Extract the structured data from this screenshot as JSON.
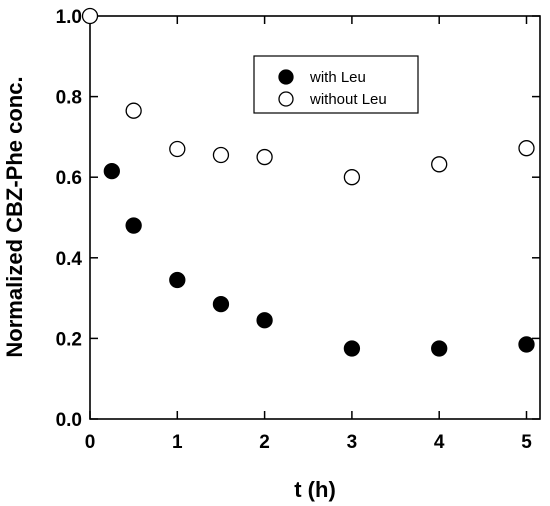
{
  "chart_data": {
    "type": "scatter",
    "xlabel": "t (h)",
    "ylabel": "Normalized CBZ-Phe conc.",
    "xlim": [
      0,
      5.15
    ],
    "ylim": [
      0,
      1.0
    ],
    "x_ticks": [
      "0",
      "1",
      "2",
      "3",
      "4",
      "5"
    ],
    "y_ticks": [
      "0.0",
      "0.2",
      "0.4",
      "0.6",
      "0.8",
      "1.0"
    ],
    "grid": false,
    "legend_position": "top-right",
    "series": [
      {
        "name": "with Leu",
        "marker": "filled-circle",
        "color": "#000000",
        "points": [
          {
            "x": 0.25,
            "y": 0.615
          },
          {
            "x": 0.5,
            "y": 0.48
          },
          {
            "x": 1.0,
            "y": 0.345
          },
          {
            "x": 1.5,
            "y": 0.285
          },
          {
            "x": 2.0,
            "y": 0.245
          },
          {
            "x": 3.0,
            "y": 0.175
          },
          {
            "x": 4.0,
            "y": 0.175
          },
          {
            "x": 5.0,
            "y": 0.185
          }
        ]
      },
      {
        "name": "without Leu",
        "marker": "open-circle",
        "color": "#000000",
        "points": [
          {
            "x": 0.0,
            "y": 1.0
          },
          {
            "x": 0.5,
            "y": 0.765
          },
          {
            "x": 1.0,
            "y": 0.67
          },
          {
            "x": 1.5,
            "y": 0.655
          },
          {
            "x": 2.0,
            "y": 0.65
          },
          {
            "x": 3.0,
            "y": 0.6
          },
          {
            "x": 4.0,
            "y": 0.632
          },
          {
            "x": 5.0,
            "y": 0.672
          }
        ]
      }
    ]
  }
}
